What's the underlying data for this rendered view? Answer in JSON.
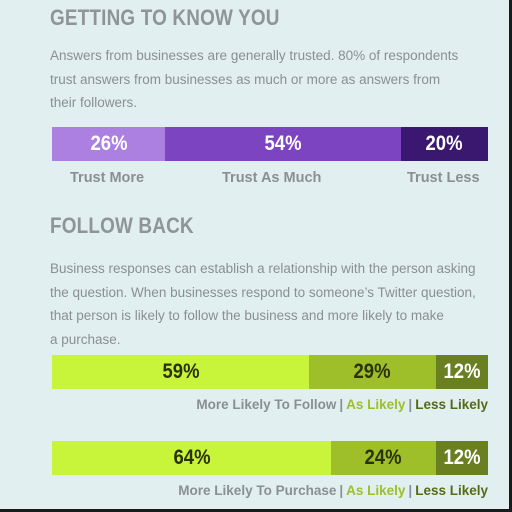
{
  "section1": {
    "title": "GETTING TO KNOW YOU",
    "body_lines": [
      "Answers from businesses are generally trusted. 80% of respondents",
      "trust answers from businesses as much or more as answers from",
      "their followers."
    ]
  },
  "section2": {
    "title": "FOLLOW BACK",
    "body_lines": [
      "Business responses can establish a relationship with the person asking",
      "the question. When businesses respond to someone’s Twitter question,",
      "that person is likely to follow the business and more likely to make",
      "a purchase."
    ]
  },
  "colors": {
    "background": "#e1eff0",
    "trust_more": "#ab80e0",
    "trust_as_much": "#7d44c2",
    "trust_less": "#3b1870",
    "more_likely": "#c8f53a",
    "as_likely": "#9ebe2a",
    "less_likely": "#6a7f20"
  },
  "chart_data": [
    {
      "type": "bar",
      "orientation": "stacked-horizontal",
      "categories": [
        "Trust More",
        "Trust As Much",
        "Trust Less"
      ],
      "values": [
        26,
        54,
        20
      ],
      "value_labels": [
        "26%",
        "54%",
        "20%"
      ]
    },
    {
      "type": "bar",
      "orientation": "stacked-horizontal",
      "categories": [
        "More Likely To Follow",
        "As Likely",
        "Less Likely"
      ],
      "values": [
        59,
        29,
        12
      ],
      "value_labels": [
        "59%",
        "29%",
        "12%"
      ]
    },
    {
      "type": "bar",
      "orientation": "stacked-horizontal",
      "categories": [
        "More Likely To Purchase",
        "As Likely",
        "Less Likely"
      ],
      "values": [
        64,
        24,
        12
      ],
      "value_labels": [
        "64%",
        "24%",
        "12%"
      ]
    }
  ]
}
